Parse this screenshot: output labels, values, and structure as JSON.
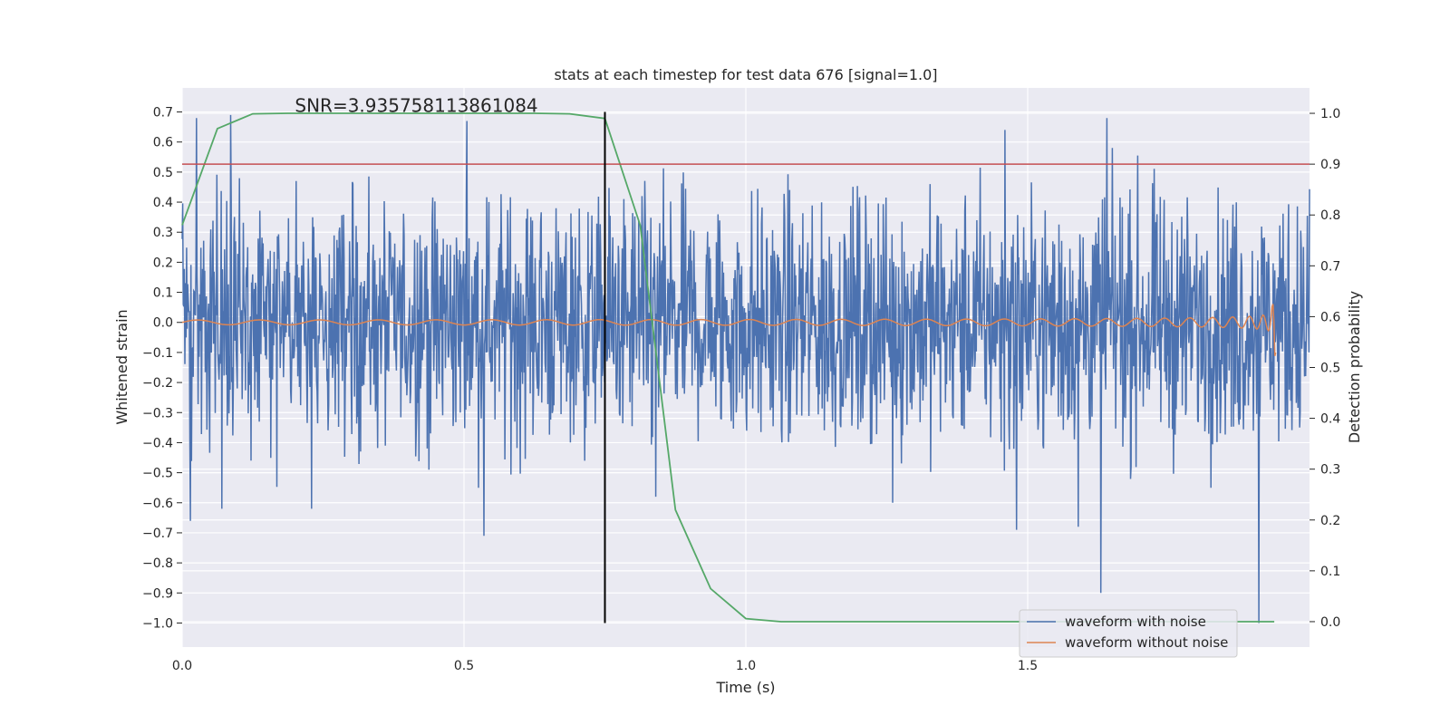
{
  "chart_data": {
    "type": "line",
    "title": "stats at each timestep for test data 676 [signal=1.0]",
    "xlabel": "Time (s)",
    "ylabel_left": "Whitened strain",
    "ylabel_right": "Detection probability",
    "xlim": [
      0.0,
      2.0
    ],
    "ylim_left": [
      -1.08,
      0.78
    ],
    "ylim_right": [
      -0.05,
      1.05
    ],
    "x_ticks": [
      0.0,
      0.5,
      1.0,
      1.5
    ],
    "x_tick_labels": [
      "0.0",
      "0.5",
      "1.0",
      "1.5"
    ],
    "y_left_ticks": [
      0.7,
      0.6,
      0.5,
      0.4,
      0.3,
      0.2,
      0.1,
      0.0,
      -0.1,
      -0.2,
      -0.3,
      -0.4,
      -0.5,
      -0.6,
      -0.7,
      -0.8,
      -0.9,
      -1.0
    ],
    "y_left_tick_labels": [
      "0.7",
      "0.6",
      "0.5",
      "0.4",
      "0.3",
      "0.2",
      "0.1",
      "0.0",
      "−0.1",
      "−0.2",
      "−0.3",
      "−0.4",
      "−0.5",
      "−0.6",
      "−0.7",
      "−0.8",
      "−0.9",
      "−1.0"
    ],
    "y_right_ticks": [
      1.0,
      0.9,
      0.8,
      0.7,
      0.6,
      0.5,
      0.4,
      0.3,
      0.2,
      0.1,
      0.0
    ],
    "y_right_tick_labels": [
      "1.0",
      "0.9",
      "0.8",
      "0.7",
      "0.6",
      "0.5",
      "0.4",
      "0.3",
      "0.2",
      "0.1",
      "0.0"
    ],
    "annotation": "SNR=3.935758113861084",
    "annotation_pos": {
      "x": 0.2,
      "y": 0.7
    },
    "threshold": {
      "value": 0.9,
      "axis": "right",
      "color": "#c44e52"
    },
    "vline": {
      "x": 0.75,
      "y_range": [
        -1.0,
        0.7
      ],
      "color": "#000000"
    },
    "series": [
      {
        "name": "waveform with noise",
        "axis": "left",
        "color": "#4c72b0",
        "kind": "noise",
        "x_range": [
          0.0,
          2.0
        ],
        "samples": 2048,
        "std": 0.2,
        "extremes": [
          {
            "x": 0.015,
            "y": -0.66
          },
          {
            "x": 0.025,
            "y": 0.68
          },
          {
            "x": 0.07,
            "y": -0.62
          },
          {
            "x": 0.086,
            "y": 0.69
          },
          {
            "x": 0.23,
            "y": -0.62
          },
          {
            "x": 0.505,
            "y": 0.67
          },
          {
            "x": 0.535,
            "y": -0.71
          },
          {
            "x": 0.84,
            "y": -0.58
          },
          {
            "x": 1.26,
            "y": -0.6
          },
          {
            "x": 1.46,
            "y": 0.64
          },
          {
            "x": 1.48,
            "y": -0.69
          },
          {
            "x": 1.59,
            "y": -0.68
          },
          {
            "x": 1.64,
            "y": 0.68
          },
          {
            "x": 1.63,
            "y": -0.9
          },
          {
            "x": 1.91,
            "y": -1.0
          }
        ]
      },
      {
        "name": "waveform without noise",
        "axis": "left",
        "color": "#dd8452",
        "kind": "chirp",
        "x_range": [
          0.0,
          1.94
        ],
        "merger_time": 1.94,
        "amplitude_start": 0.008,
        "amplitude_peak": 0.19,
        "frequency_start": 9,
        "frequency_end": 150
      },
      {
        "name": "detection probability",
        "axis": "right",
        "color": "#55a868",
        "x": [
          0.0,
          0.0625,
          0.125,
          0.1875,
          0.25,
          0.3125,
          0.375,
          0.4375,
          0.5,
          0.5625,
          0.625,
          0.6875,
          0.75,
          0.8125,
          0.875,
          0.9375,
          1.0,
          1.0625,
          1.125,
          1.1875,
          1.25,
          1.3125,
          1.375,
          1.4375,
          1.5,
          1.5625,
          1.625,
          1.6875,
          1.75,
          1.8125,
          1.875,
          1.9375
        ],
        "y": [
          0.78,
          0.97,
          0.999,
          1.0,
          1.0,
          1.0,
          1.0,
          1.0,
          1.0,
          1.0,
          1.0,
          0.999,
          0.99,
          0.78,
          0.22,
          0.065,
          0.006,
          0.0,
          0.0,
          0.0,
          0.0,
          0.0,
          0.0,
          0.0,
          0.0,
          0.0,
          0.0,
          0.0,
          0.0,
          0.0,
          0.0,
          0.0
        ]
      }
    ],
    "legend": {
      "position": "lower-right",
      "entries": [
        {
          "label": "waveform with noise",
          "color": "#4c72b0"
        },
        {
          "label": "waveform without noise",
          "color": "#dd8452"
        }
      ]
    }
  }
}
